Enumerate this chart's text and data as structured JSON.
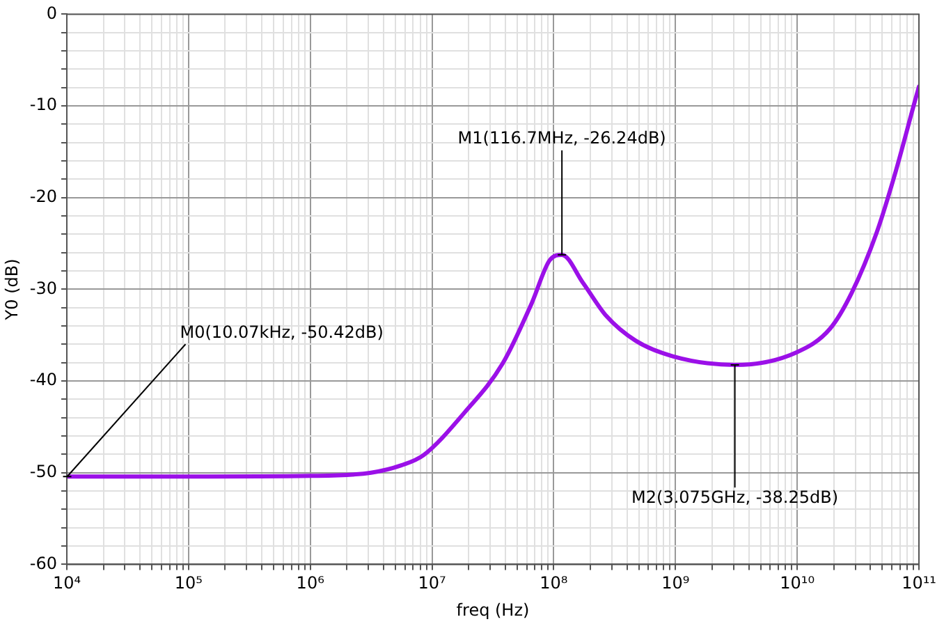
{
  "chart_data": {
    "type": "line",
    "xlabel": "freq (Hz)",
    "ylabel": "Y0 (dB)",
    "log": "x",
    "grid": true,
    "legend": false,
    "marker": "none",
    "line_style": "solid",
    "xlim": [
      10000,
      100000000000
    ],
    "xticks": [
      {
        "value": 10000,
        "label": "10⁴"
      },
      {
        "value": 20000,
        "label": null
      },
      {
        "value": 30000,
        "label": null
      },
      {
        "value": 40000,
        "label": null
      },
      {
        "value": 50000,
        "label": null
      },
      {
        "value": 60000,
        "label": null
      },
      {
        "value": 70000,
        "label": null
      },
      {
        "value": 80000,
        "label": null
      },
      {
        "value": 90000,
        "label": null
      },
      {
        "value": 100000,
        "label": "10⁵"
      },
      {
        "value": 200000,
        "label": null
      },
      {
        "value": 300000,
        "label": null
      },
      {
        "value": 400000,
        "label": null
      },
      {
        "value": 500000,
        "label": null
      },
      {
        "value": 600000,
        "label": null
      },
      {
        "value": 700000,
        "label": null
      },
      {
        "value": 800000,
        "label": null
      },
      {
        "value": 900000,
        "label": null
      },
      {
        "value": 1000000,
        "label": "10⁶"
      },
      {
        "value": 2000000,
        "label": null
      },
      {
        "value": 3000000,
        "label": null
      },
      {
        "value": 4000000,
        "label": null
      },
      {
        "value": 5000000,
        "label": null
      },
      {
        "value": 6000000,
        "label": null
      },
      {
        "value": 7000000,
        "label": null
      },
      {
        "value": 8000000,
        "label": null
      },
      {
        "value": 9000000,
        "label": null
      },
      {
        "value": 10000000,
        "label": "10⁷"
      },
      {
        "value": 20000000,
        "label": null
      },
      {
        "value": 30000000,
        "label": null
      },
      {
        "value": 40000000,
        "label": null
      },
      {
        "value": 50000000,
        "label": null
      },
      {
        "value": 60000000,
        "label": null
      },
      {
        "value": 70000000,
        "label": null
      },
      {
        "value": 80000000,
        "label": null
      },
      {
        "value": 90000000,
        "label": null
      },
      {
        "value": 100000000,
        "label": "10⁸"
      },
      {
        "value": 200000000,
        "label": null
      },
      {
        "value": 300000000,
        "label": null
      },
      {
        "value": 400000000,
        "label": null
      },
      {
        "value": 500000000,
        "label": null
      },
      {
        "value": 600000000,
        "label": null
      },
      {
        "value": 700000000,
        "label": null
      },
      {
        "value": 800000000,
        "label": null
      },
      {
        "value": 900000000,
        "label": null
      },
      {
        "value": 1000000000,
        "label": "10⁹"
      },
      {
        "value": 2000000000,
        "label": null
      },
      {
        "value": 3000000000,
        "label": null
      },
      {
        "value": 4000000000,
        "label": null
      },
      {
        "value": 5000000000,
        "label": null
      },
      {
        "value": 6000000000,
        "label": null
      },
      {
        "value": 7000000000,
        "label": null
      },
      {
        "value": 8000000000,
        "label": null
      },
      {
        "value": 9000000000,
        "label": null
      },
      {
        "value": 10000000000,
        "label": "10¹⁰"
      },
      {
        "value": 20000000000,
        "label": null
      },
      {
        "value": 30000000000,
        "label": null
      },
      {
        "value": 40000000000,
        "label": null
      },
      {
        "value": 50000000000,
        "label": null
      },
      {
        "value": 60000000000,
        "label": null
      },
      {
        "value": 70000000000,
        "label": null
      },
      {
        "value": 80000000000,
        "label": null
      },
      {
        "value": 90000000000,
        "label": null
      },
      {
        "value": 100000000000,
        "label": "10¹¹"
      }
    ],
    "ylim": [
      -60,
      0
    ],
    "yticks": [
      -60,
      {
        "value": -58,
        "label": null
      },
      {
        "value": -56,
        "label": null
      },
      {
        "value": -54,
        "label": null
      },
      {
        "value": -52,
        "label": null
      },
      -50,
      {
        "value": -48,
        "label": null
      },
      {
        "value": -46,
        "label": null
      },
      {
        "value": -44,
        "label": null
      },
      {
        "value": -42,
        "label": null
      },
      -40,
      {
        "value": -38,
        "label": null
      },
      {
        "value": -36,
        "label": null
      },
      {
        "value": -34,
        "label": null
      },
      {
        "value": -32,
        "label": null
      },
      -30,
      {
        "value": -28,
        "label": null
      },
      {
        "value": -26,
        "label": null
      },
      {
        "value": -24,
        "label": null
      },
      {
        "value": -22,
        "label": null
      },
      -20,
      {
        "value": -18,
        "label": null
      },
      {
        "value": -16,
        "label": null
      },
      {
        "value": -14,
        "label": null
      },
      {
        "value": -12,
        "label": null
      },
      -10,
      {
        "value": -8,
        "label": null
      },
      {
        "value": -6,
        "label": null
      },
      {
        "value": -4,
        "label": null
      },
      {
        "value": -2,
        "label": null
      },
      0
    ],
    "series": [
      {
        "color": "#9b10e8",
        "x": [
          10000,
          100000,
          1000000,
          3160000,
          5600000,
          8500000,
          18600000,
          38000000,
          66000000,
          93000000,
          116700000,
          174000000,
          270000000,
          470000000,
          950000000,
          3075000000,
          9800000000,
          18600000000,
          28000000000,
          45000000000,
          63000000000,
          93000000000,
          100000000000
        ],
        "values": [
          -50.42,
          -50.42,
          -50.35,
          -50.0,
          -49.2,
          -48.1,
          -43.4,
          -38.1,
          -31.5,
          -26.8,
          -26.24,
          -29.3,
          -32.9,
          -35.6,
          -37.3,
          -38.25,
          -36.9,
          -34.3,
          -30.4,
          -23.8,
          -17.6,
          -9.4,
          -7.9
        ]
      }
    ],
    "annotations": [
      {
        "text": "M0(10.07kHz, -50.42dB)",
        "x": 10070,
        "y": -50.42
      },
      {
        "text": "M1(116.7MHz, -26.24dB)",
        "x": 116700000,
        "y": -26.24
      },
      {
        "text": "M2(3.075GHz, -38.25dB)",
        "x": 3075000000,
        "y": -38.25
      }
    ]
  }
}
